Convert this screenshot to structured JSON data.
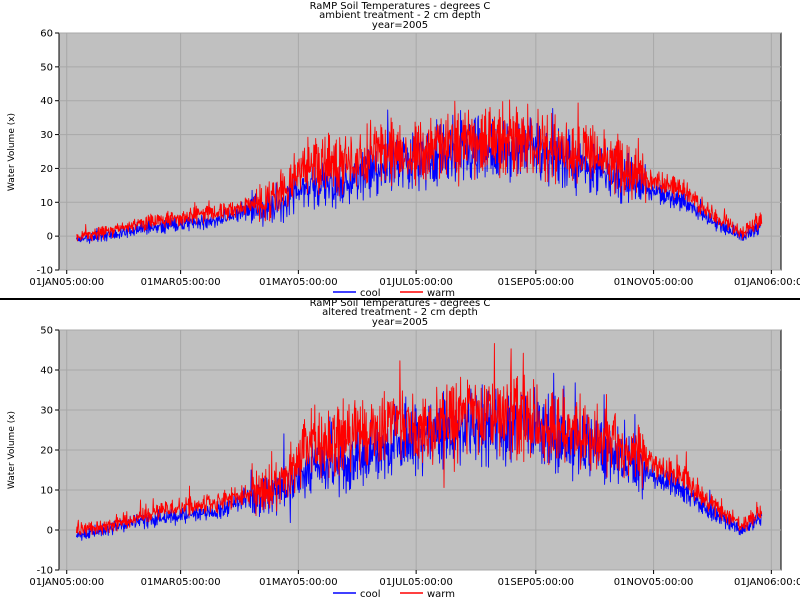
{
  "colors": {
    "cool": "#0000ff",
    "warm": "#ff0000",
    "plot_bg": "#c0c0c0",
    "grid": "#a8a8a8"
  },
  "chart_data": [
    {
      "type": "line",
      "title": "RaMP Soil Temperatures - degrees C",
      "subtitle": "ambient treatment - 2 cm depth",
      "subtitle2": "year=2005",
      "xlabel": "",
      "ylabel": "Water Volume (x)",
      "ylim": [
        -10,
        60
      ],
      "yticks": [
        -10,
        0,
        10,
        20,
        30,
        40,
        50,
        60
      ],
      "ytick_labels": [
        "-10",
        "0",
        "10",
        "20",
        "30",
        "40",
        "50",
        "60"
      ],
      "xlim": [
        -4,
        370
      ],
      "xticks": [
        0,
        59,
        120,
        181,
        243,
        304,
        365
      ],
      "xtick_labels": [
        "01JAN05:00:00",
        "01MAR05:00:00",
        "01MAY05:00:00",
        "01JUL05:00:00",
        "01SEP05:00:00",
        "01NOV05:00:00",
        "01JAN06:00:00"
      ],
      "grid": true,
      "legend": "top-center",
      "x_unit": "day of year 2005",
      "series": [
        {
          "name": "cool",
          "color": "#0000ff",
          "x": [
            5,
            20,
            35,
            50,
            65,
            80,
            95,
            110,
            125,
            140,
            155,
            170,
            185,
            200,
            215,
            230,
            245,
            260,
            275,
            290,
            305,
            320,
            335,
            350,
            360
          ],
          "values": [
            -1,
            0,
            2,
            3,
            4,
            5,
            8,
            9,
            15,
            15,
            19,
            22,
            23,
            25,
            25,
            26,
            25,
            22,
            20,
            17,
            13,
            10,
            4,
            0,
            3
          ]
        },
        {
          "name": "warm",
          "color": "#ff0000",
          "x": [
            5,
            20,
            35,
            50,
            65,
            80,
            95,
            110,
            125,
            140,
            155,
            170,
            185,
            200,
            215,
            230,
            245,
            260,
            275,
            290,
            305,
            320,
            335,
            350,
            360
          ],
          "values": [
            0,
            1,
            3,
            5,
            6,
            7,
            9,
            11,
            22,
            21,
            24,
            25,
            25,
            27,
            28,
            29,
            27,
            25,
            23,
            20,
            16,
            13,
            6,
            1,
            5
          ]
        }
      ]
    },
    {
      "type": "line",
      "title": "RaMP Soil Temperatures - degrees C",
      "subtitle": "altered treatment - 2 cm depth",
      "subtitle2": "year=2005",
      "xlabel": "",
      "ylabel": "Water Volume (x)",
      "ylim": [
        -10,
        50
      ],
      "yticks": [
        -10,
        0,
        10,
        20,
        30,
        40,
        50
      ],
      "ytick_labels": [
        "-10",
        "0",
        "10",
        "20",
        "30",
        "40",
        "50"
      ],
      "xlim": [
        -4,
        370
      ],
      "xticks": [
        0,
        59,
        120,
        181,
        243,
        304,
        365
      ],
      "xtick_labels": [
        "01JAN05:00:00",
        "01MAR05:00:00",
        "01MAY05:00:00",
        "01JUL05:00:00",
        "01SEP05:00:00",
        "01NOV05:00:00",
        "01JAN06:00:00"
      ],
      "grid": true,
      "legend": "bottom-center",
      "x_unit": "day of year 2005",
      "series": [
        {
          "name": "cool",
          "color": "#0000ff",
          "x": [
            5,
            20,
            35,
            50,
            65,
            80,
            95,
            110,
            125,
            140,
            155,
            170,
            185,
            200,
            215,
            230,
            245,
            260,
            275,
            290,
            305,
            320,
            335,
            350,
            360
          ],
          "values": [
            -1,
            0,
            2,
            3,
            4,
            5,
            8,
            9,
            15,
            16,
            19,
            22,
            23,
            25,
            26,
            26,
            25,
            22,
            20,
            17,
            13,
            10,
            4,
            0,
            3
          ]
        },
        {
          "name": "warm",
          "color": "#ff0000",
          "x": [
            5,
            20,
            35,
            50,
            65,
            80,
            95,
            110,
            125,
            140,
            155,
            170,
            185,
            200,
            215,
            230,
            245,
            260,
            275,
            290,
            305,
            320,
            335,
            350,
            360
          ],
          "values": [
            0,
            1,
            3,
            5,
            6,
            7,
            9,
            11,
            22,
            22,
            24,
            25,
            25,
            28,
            29,
            29,
            27,
            25,
            23,
            20,
            16,
            13,
            6,
            1,
            5
          ]
        }
      ]
    }
  ]
}
